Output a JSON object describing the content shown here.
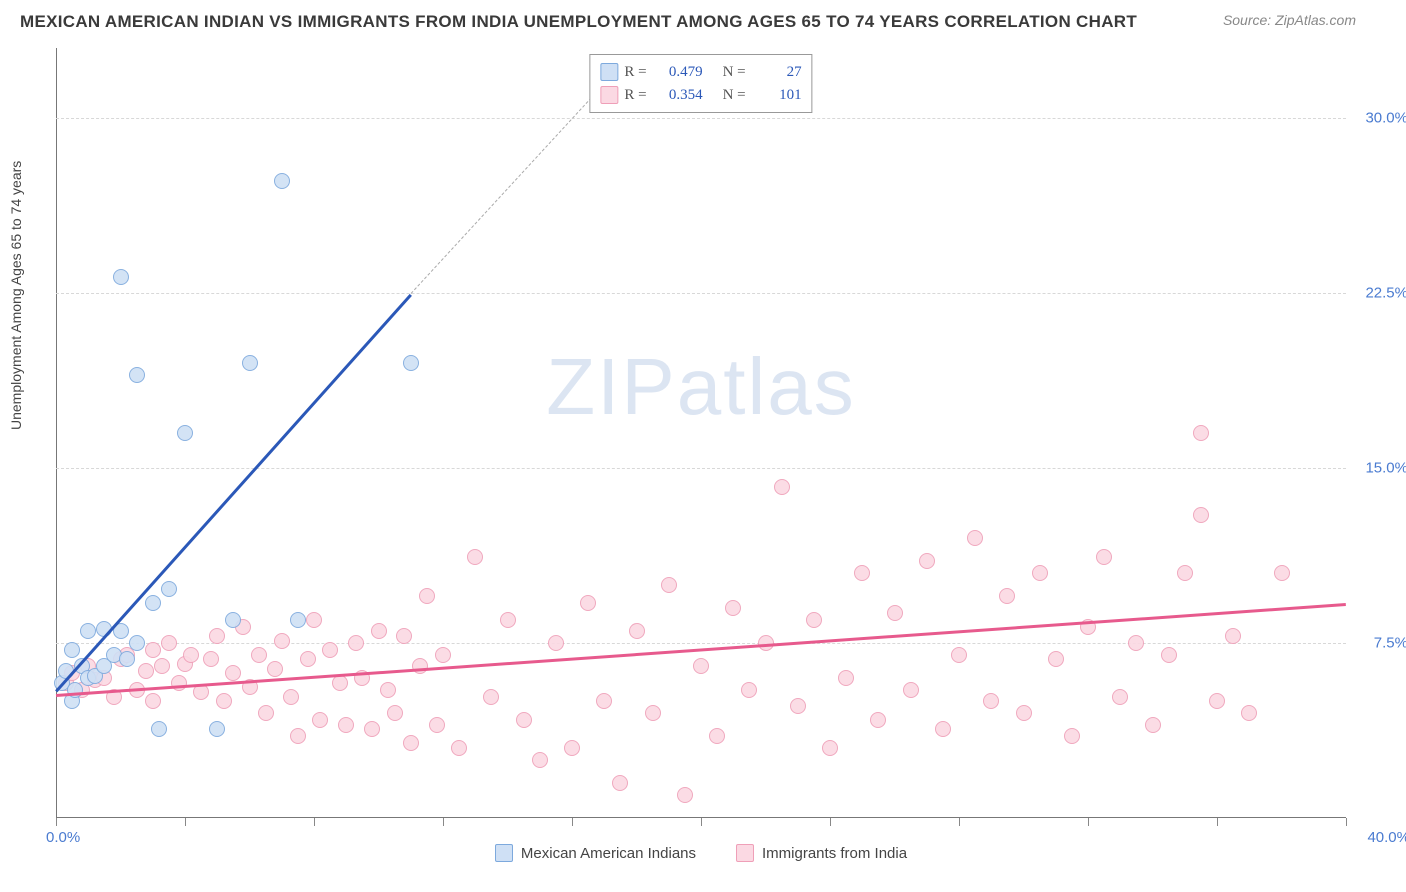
{
  "title": "MEXICAN AMERICAN INDIAN VS IMMIGRANTS FROM INDIA UNEMPLOYMENT AMONG AGES 65 TO 74 YEARS CORRELATION CHART",
  "source_label": "Source: ZipAtlas.com",
  "y_axis_label": "Unemployment Among Ages 65 to 74 years",
  "watermark_a": "ZIP",
  "watermark_b": "atlas",
  "chart": {
    "type": "scatter",
    "background_color": "#ffffff",
    "grid_color": "#d8d8d8",
    "axis_color": "#777777",
    "xlim": [
      0,
      40
    ],
    "ylim": [
      0,
      33
    ],
    "x_ticks": [
      0,
      4,
      8,
      12,
      16,
      20,
      24,
      28,
      32,
      36,
      40
    ],
    "y_gridlines": [
      7.5,
      15.0,
      22.5,
      30.0
    ],
    "y_tick_labels": [
      "7.5%",
      "15.0%",
      "22.5%",
      "30.0%"
    ],
    "x_origin_label": "0.0%",
    "x_max_label": "40.0%",
    "marker_radius": 8,
    "marker_stroke_width": 1.5,
    "trend_line_width": 2.5
  },
  "series": [
    {
      "id": "mexican_american_indians",
      "label": "Mexican American Indians",
      "fill_color": "#cfe0f5",
      "stroke_color": "#7da9dd",
      "line_color": "#2b58b8",
      "R": "0.479",
      "N": "27",
      "trend": {
        "x1": 0,
        "y1": 5.5,
        "x2": 11,
        "y2": 22.5,
        "dash_to_x": 17,
        "dash_to_y": 31.5
      },
      "points": [
        [
          0.2,
          5.8
        ],
        [
          0.3,
          6.3
        ],
        [
          0.5,
          5.0
        ],
        [
          0.5,
          7.2
        ],
        [
          0.6,
          5.5
        ],
        [
          0.8,
          6.5
        ],
        [
          1.0,
          6.0
        ],
        [
          1.0,
          8.0
        ],
        [
          1.2,
          6.1
        ],
        [
          1.5,
          8.1
        ],
        [
          1.5,
          6.5
        ],
        [
          1.8,
          7.0
        ],
        [
          2.0,
          8.0
        ],
        [
          2.0,
          23.2
        ],
        [
          2.2,
          6.8
        ],
        [
          2.5,
          7.5
        ],
        [
          2.5,
          19.0
        ],
        [
          3.0,
          9.2
        ],
        [
          3.2,
          3.8
        ],
        [
          3.5,
          9.8
        ],
        [
          4.0,
          16.5
        ],
        [
          5.0,
          3.8
        ],
        [
          5.5,
          8.5
        ],
        [
          6.0,
          19.5
        ],
        [
          7.0,
          27.3
        ],
        [
          7.5,
          8.5
        ],
        [
          11.0,
          19.5
        ]
      ]
    },
    {
      "id": "immigrants_from_india",
      "label": "Immigrants from India",
      "fill_color": "#fbd9e3",
      "stroke_color": "#ef9fb8",
      "line_color": "#e75a8d",
      "R": "0.354",
      "N": "101",
      "trend": {
        "x1": 0,
        "y1": 5.3,
        "x2": 40,
        "y2": 9.2
      },
      "points": [
        [
          0.3,
          5.8
        ],
        [
          0.5,
          6.2
        ],
        [
          0.8,
          5.5
        ],
        [
          1.0,
          6.5
        ],
        [
          1.2,
          5.9
        ],
        [
          1.5,
          6.0
        ],
        [
          1.8,
          5.2
        ],
        [
          2.0,
          6.8
        ],
        [
          2.2,
          7.0
        ],
        [
          2.5,
          5.5
        ],
        [
          2.8,
          6.3
        ],
        [
          3.0,
          7.2
        ],
        [
          3.0,
          5.0
        ],
        [
          3.3,
          6.5
        ],
        [
          3.5,
          7.5
        ],
        [
          3.8,
          5.8
        ],
        [
          4.0,
          6.6
        ],
        [
          4.2,
          7.0
        ],
        [
          4.5,
          5.4
        ],
        [
          4.8,
          6.8
        ],
        [
          5.0,
          7.8
        ],
        [
          5.2,
          5.0
        ],
        [
          5.5,
          6.2
        ],
        [
          5.8,
          8.2
        ],
        [
          6.0,
          5.6
        ],
        [
          6.3,
          7.0
        ],
        [
          6.5,
          4.5
        ],
        [
          6.8,
          6.4
        ],
        [
          7.0,
          7.6
        ],
        [
          7.3,
          5.2
        ],
        [
          7.5,
          3.5
        ],
        [
          7.8,
          6.8
        ],
        [
          8.0,
          8.5
        ],
        [
          8.2,
          4.2
        ],
        [
          8.5,
          7.2
        ],
        [
          8.8,
          5.8
        ],
        [
          9.0,
          4.0
        ],
        [
          9.3,
          7.5
        ],
        [
          9.5,
          6.0
        ],
        [
          9.8,
          3.8
        ],
        [
          10.0,
          8.0
        ],
        [
          10.3,
          5.5
        ],
        [
          10.5,
          4.5
        ],
        [
          10.8,
          7.8
        ],
        [
          11.0,
          3.2
        ],
        [
          11.3,
          6.5
        ],
        [
          11.5,
          9.5
        ],
        [
          11.8,
          4.0
        ],
        [
          12.0,
          7.0
        ],
        [
          12.5,
          3.0
        ],
        [
          13.0,
          11.2
        ],
        [
          13.5,
          5.2
        ],
        [
          14.0,
          8.5
        ],
        [
          14.5,
          4.2
        ],
        [
          15.0,
          2.5
        ],
        [
          15.5,
          7.5
        ],
        [
          16.0,
          3.0
        ],
        [
          16.5,
          9.2
        ],
        [
          17.0,
          5.0
        ],
        [
          17.5,
          1.5
        ],
        [
          18.0,
          8.0
        ],
        [
          18.5,
          4.5
        ],
        [
          19.0,
          10.0
        ],
        [
          19.5,
          1.0
        ],
        [
          20.0,
          6.5
        ],
        [
          20.5,
          3.5
        ],
        [
          21.0,
          9.0
        ],
        [
          21.5,
          5.5
        ],
        [
          22.0,
          7.5
        ],
        [
          22.5,
          14.2
        ],
        [
          23.0,
          4.8
        ],
        [
          23.5,
          8.5
        ],
        [
          24.0,
          3.0
        ],
        [
          24.5,
          6.0
        ],
        [
          25.0,
          10.5
        ],
        [
          25.5,
          4.2
        ],
        [
          26.0,
          8.8
        ],
        [
          26.5,
          5.5
        ],
        [
          27.0,
          11.0
        ],
        [
          27.5,
          3.8
        ],
        [
          28.0,
          7.0
        ],
        [
          28.5,
          12.0
        ],
        [
          29.0,
          5.0
        ],
        [
          29.5,
          9.5
        ],
        [
          30.0,
          4.5
        ],
        [
          30.5,
          10.5
        ],
        [
          31.0,
          6.8
        ],
        [
          31.5,
          3.5
        ],
        [
          32.0,
          8.2
        ],
        [
          32.5,
          11.2
        ],
        [
          33.0,
          5.2
        ],
        [
          33.5,
          7.5
        ],
        [
          34.0,
          4.0
        ],
        [
          34.5,
          7.0
        ],
        [
          35.0,
          10.5
        ],
        [
          35.5,
          13.0
        ],
        [
          35.5,
          16.5
        ],
        [
          36.0,
          5.0
        ],
        [
          36.5,
          7.8
        ],
        [
          37.0,
          4.5
        ],
        [
          38.0,
          10.5
        ]
      ]
    }
  ],
  "legend_top": {
    "r_prefix": "R =",
    "n_prefix": "N ="
  }
}
